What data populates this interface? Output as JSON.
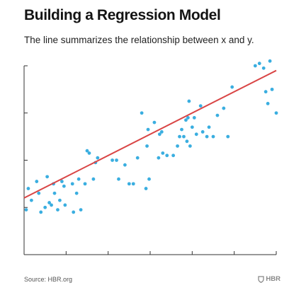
{
  "header": {
    "title": "Building a Regression Model",
    "subtitle": "The line summarizes the relationship between x and y."
  },
  "footer": {
    "source": "Source: HBR.org",
    "logo": "HBR",
    "logo_icon": "shield-icon"
  },
  "colors": {
    "points": "#3aaee0",
    "regression_line": "#d94545",
    "axis": "#333333"
  },
  "chart_data": {
    "type": "scatter",
    "title": "",
    "xlabel": "",
    "ylabel": "",
    "xlim": [
      0,
      12
    ],
    "ylim": [
      0,
      8
    ],
    "x_tick_count": 6,
    "y_tick_count": 4,
    "tick_labels_shown": false,
    "grid": false,
    "legend": "none",
    "points": [
      [
        0.1,
        1.9
      ],
      [
        0.2,
        2.8
      ],
      [
        0.35,
        2.3
      ],
      [
        0.6,
        3.1
      ],
      [
        0.7,
        2.6
      ],
      [
        0.8,
        1.8
      ],
      [
        1.0,
        2.0
      ],
      [
        1.1,
        3.3
      ],
      [
        1.2,
        2.2
      ],
      [
        1.3,
        2.1
      ],
      [
        1.4,
        3.0
      ],
      [
        1.45,
        2.6
      ],
      [
        1.6,
        1.9
      ],
      [
        1.7,
        2.3
      ],
      [
        1.8,
        3.1
      ],
      [
        1.9,
        2.9
      ],
      [
        1.95,
        2.1
      ],
      [
        2.3,
        3.0
      ],
      [
        2.35,
        1.8
      ],
      [
        2.5,
        2.6
      ],
      [
        2.6,
        3.2
      ],
      [
        2.7,
        1.9
      ],
      [
        2.9,
        3.0
      ],
      [
        3.0,
        4.4
      ],
      [
        3.1,
        4.3
      ],
      [
        3.3,
        3.2
      ],
      [
        3.4,
        3.9
      ],
      [
        3.5,
        4.1
      ],
      [
        4.2,
        4.0
      ],
      [
        4.4,
        4.0
      ],
      [
        4.5,
        3.2
      ],
      [
        4.8,
        3.8
      ],
      [
        5.0,
        3.0
      ],
      [
        5.2,
        3.0
      ],
      [
        5.4,
        4.1
      ],
      [
        5.6,
        6.0
      ],
      [
        5.8,
        2.8
      ],
      [
        5.85,
        4.6
      ],
      [
        5.9,
        5.3
      ],
      [
        5.95,
        3.2
      ],
      [
        6.2,
        5.6
      ],
      [
        6.4,
        4.1
      ],
      [
        6.45,
        5.1
      ],
      [
        6.55,
        5.2
      ],
      [
        6.6,
        4.3
      ],
      [
        6.8,
        4.2
      ],
      [
        7.1,
        4.2
      ],
      [
        7.3,
        4.6
      ],
      [
        7.4,
        5.0
      ],
      [
        7.5,
        5.3
      ],
      [
        7.6,
        5.0
      ],
      [
        7.7,
        5.7
      ],
      [
        7.75,
        4.8
      ],
      [
        7.8,
        5.8
      ],
      [
        7.85,
        6.5
      ],
      [
        7.9,
        4.6
      ],
      [
        8.0,
        5.4
      ],
      [
        8.1,
        5.8
      ],
      [
        8.2,
        5.1
      ],
      [
        8.4,
        6.3
      ],
      [
        8.5,
        5.2
      ],
      [
        8.7,
        5.0
      ],
      [
        8.8,
        5.4
      ],
      [
        9.0,
        5.0
      ],
      [
        9.2,
        5.9
      ],
      [
        9.5,
        6.2
      ],
      [
        9.7,
        5.0
      ],
      [
        9.9,
        7.1
      ],
      [
        11.0,
        8.0
      ],
      [
        11.2,
        8.1
      ],
      [
        11.4,
        7.9
      ],
      [
        11.5,
        6.9
      ],
      [
        11.6,
        6.4
      ],
      [
        11.7,
        8.2
      ],
      [
        11.8,
        7.0
      ],
      [
        12.0,
        6.0
      ]
    ],
    "regression_line": {
      "intercept": 2.4,
      "slope": 0.45
    }
  }
}
